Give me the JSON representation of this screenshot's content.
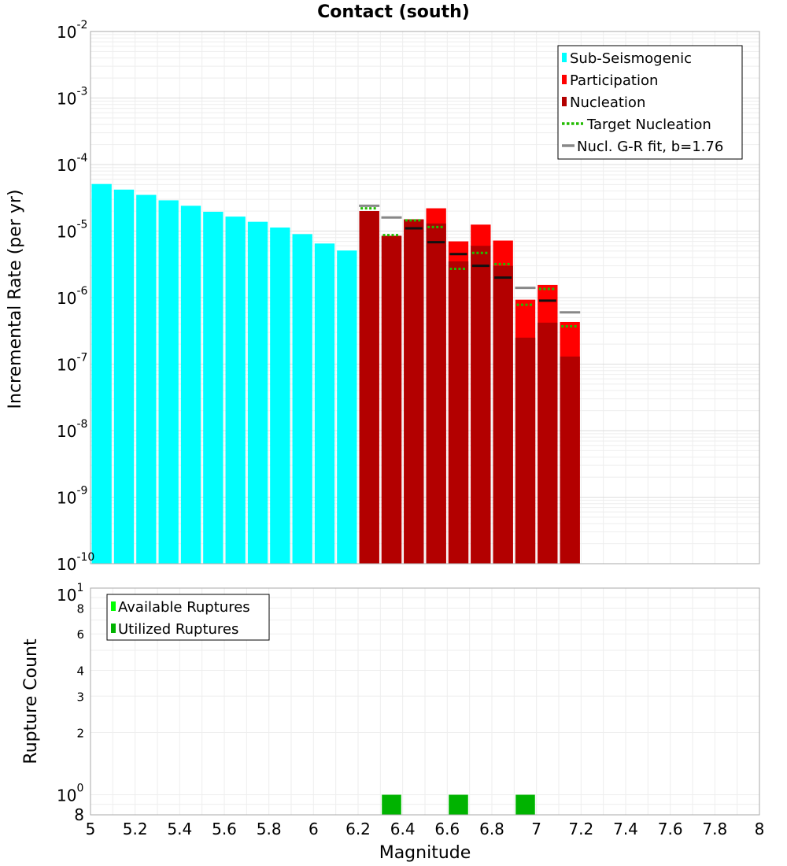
{
  "chart_data": [
    {
      "type": "bar",
      "title": "Contact (south)",
      "xlabel": "",
      "ylabel": "Incremental Rate (per yr)",
      "yscale": "log",
      "xlim": [
        5,
        8
      ],
      "ylim": [
        1e-10,
        0.01
      ],
      "grid": true,
      "y_tick_labels": [
        {
          "base": "10",
          "exp": "-10"
        },
        {
          "base": "10",
          "exp": "-9"
        },
        {
          "base": "10",
          "exp": "-8"
        },
        {
          "base": "10",
          "exp": "-7"
        },
        {
          "base": "10",
          "exp": "-6"
        },
        {
          "base": "10",
          "exp": "-5"
        },
        {
          "base": "10",
          "exp": "-4"
        },
        {
          "base": "10",
          "exp": "-3"
        },
        {
          "base": "10",
          "exp": "-2"
        }
      ],
      "bin_width": 0.1,
      "legend_position": "top-right",
      "legend": [
        "Sub-Seismogenic",
        "Participation",
        "Nucleation",
        "Target Nucleation",
        "Nucl. G-R fit, b=1.76"
      ],
      "colors": {
        "sub_seismogenic": "#00ffff",
        "participation": "#ff0000",
        "nucleation": "#b30000",
        "target_nucleation": "#22bb00",
        "gr_fit": "#888888",
        "nucleation_tick": "#111111"
      },
      "series": [
        {
          "name": "Sub-Seismogenic",
          "x": [
            5.05,
            5.15,
            5.25,
            5.35,
            5.45,
            5.55,
            5.65,
            5.75,
            5.85,
            5.95,
            6.05,
            6.15
          ],
          "values": [
            5.1e-05,
            4.2e-05,
            3.5e-05,
            2.9e-05,
            2.4e-05,
            1.95e-05,
            1.65e-05,
            1.38e-05,
            1.13e-05,
            9e-06,
            6.5e-06,
            5.1e-06
          ]
        },
        {
          "name": "Participation",
          "x": [
            6.25,
            6.35,
            6.45,
            6.55,
            6.65,
            6.75,
            6.85,
            6.95,
            7.05,
            7.15
          ],
          "values": [
            2e-05,
            8.5e-06,
            1.5e-05,
            2.2e-05,
            7e-06,
            1.25e-05,
            7.2e-06,
            9.3e-07,
            1.55e-06,
            4.3e-07
          ]
        },
        {
          "name": "Nucleation",
          "x": [
            6.25,
            6.35,
            6.45,
            6.55,
            6.65,
            6.75,
            6.85,
            6.95,
            7.05,
            7.15
          ],
          "values": [
            2e-05,
            8.5e-06,
            1.5e-05,
            1.3e-05,
            3.5e-06,
            6e-06,
            3e-06,
            2.5e-07,
            4.2e-07,
            1.3e-07
          ]
        },
        {
          "name": "Target Nucleation",
          "x": [
            6.25,
            6.35,
            6.45,
            6.55,
            6.65,
            6.75,
            6.85,
            6.95,
            7.05,
            7.15
          ],
          "values": [
            2.2e-05,
            8.7e-06,
            1.45e-05,
            1.15e-05,
            2.7e-06,
            4.7e-06,
            3.2e-06,
            7.8e-07,
            1.35e-06,
            3.7e-07
          ]
        },
        {
          "name": "Nucl. G-R fit, b=1.76",
          "x": [
            6.25,
            6.35,
            6.95,
            7.15
          ],
          "values": [
            2.4e-05,
            1.6e-05,
            1.4e-06,
            6e-07
          ]
        },
        {
          "name": "Nucleation (inner tick)",
          "x": [
            6.45,
            6.55,
            6.65,
            6.75,
            6.85,
            7.05
          ],
          "values": [
            1.1e-05,
            6.8e-06,
            4.5e-06,
            3e-06,
            2e-06,
            9e-07
          ]
        }
      ]
    },
    {
      "type": "bar",
      "title": "",
      "xlabel": "Magnitude",
      "ylabel": "Rupture Count",
      "yscale": "log",
      "xlim": [
        5,
        8
      ],
      "ylim": [
        0.8,
        10
      ],
      "grid": true,
      "x_ticks": [
        "5",
        "5.2",
        "5.4",
        "5.6",
        "5.8",
        "6",
        "6.2",
        "6.4",
        "6.6",
        "6.8",
        "7",
        "7.2",
        "7.4",
        "7.6",
        "7.8",
        "8"
      ],
      "y_tick_labels": [
        {
          "value": 0.8,
          "label": "8",
          "base": "",
          "exp": ""
        },
        {
          "value": 1,
          "label": "",
          "base": "10",
          "exp": "0"
        },
        {
          "value": 2,
          "label": "2",
          "base": "",
          "exp": ""
        },
        {
          "value": 3,
          "label": "3",
          "base": "",
          "exp": ""
        },
        {
          "value": 4,
          "label": "4",
          "base": "",
          "exp": ""
        },
        {
          "value": 6,
          "label": "6",
          "base": "",
          "exp": ""
        },
        {
          "value": 8,
          "label": "8",
          "base": "",
          "exp": ""
        },
        {
          "value": 10,
          "label": "",
          "base": "10",
          "exp": "1"
        }
      ],
      "legend_position": "top-left",
      "legend": [
        "Available Ruptures",
        "Utilized Ruptures"
      ],
      "colors": {
        "available": "#00ff00",
        "utilized": "#00b300"
      },
      "series": [
        {
          "name": "Available Ruptures",
          "x": [
            6.35,
            6.65,
            6.95
          ],
          "values": [
            1,
            1,
            1
          ]
        },
        {
          "name": "Utilized Ruptures",
          "x": [
            6.35,
            6.65,
            6.95
          ],
          "values": [
            1,
            1,
            1
          ]
        }
      ]
    }
  ]
}
